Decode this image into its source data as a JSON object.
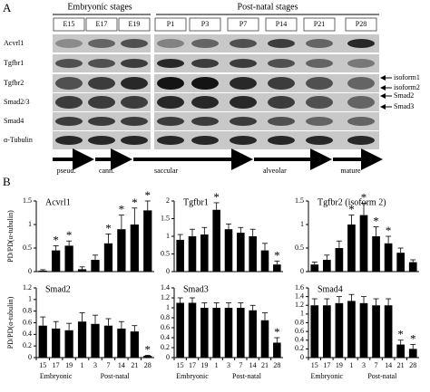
{
  "panel_a": {
    "letter": "A",
    "groups": [
      "Embryonic stages",
      "Post-natal stages"
    ],
    "lanes": [
      "E15",
      "E17",
      "E19",
      "P1",
      "P3",
      "P7",
      "P14",
      "P21",
      "P28"
    ],
    "rows": [
      "Acvrl1",
      "Tgfbr1",
      "Tgfbr2",
      "Smad2/3",
      "Smad4",
      "α-Tubulin"
    ],
    "annotations": [
      "isoform1",
      "isoform2",
      "Smad2",
      "Smad3"
    ],
    "phases": [
      "pseud.",
      "cann.",
      "saccular",
      "alveolar",
      "mature"
    ]
  },
  "panel_b": {
    "letter": "B"
  },
  "chart_data": [
    {
      "type": "bar",
      "title": "Acvrl1",
      "y_label": "PD/PD(α-tubulin)",
      "color": "#000000",
      "values": [
        0.02,
        0.45,
        0.55,
        0.05,
        0.25,
        0.6,
        0.9,
        1.0,
        1.3
      ],
      "errors": [
        0.02,
        0.1,
        0.1,
        0.05,
        0.1,
        0.2,
        0.3,
        0.35,
        0.2
      ],
      "stars": [
        null,
        "*",
        "*",
        null,
        null,
        "*",
        "*",
        "*",
        "*"
      ],
      "ylim": [
        0,
        1.5
      ],
      "yticks": [
        0,
        0.5,
        1,
        1.5
      ]
    },
    {
      "type": "bar",
      "title": "Tgfbr1",
      "color": "#000000",
      "values": [
        0.9,
        1.0,
        1.05,
        1.75,
        1.2,
        1.1,
        1.0,
        0.6,
        0.2
      ],
      "errors": [
        0.15,
        0.2,
        0.2,
        0.2,
        0.15,
        0.15,
        0.2,
        0.2,
        0.1
      ],
      "stars": [
        null,
        null,
        null,
        "*",
        null,
        null,
        null,
        null,
        "*"
      ],
      "ylim": [
        0,
        2
      ],
      "yticks": [
        0,
        0.5,
        1,
        1.5,
        2
      ]
    },
    {
      "type": "bar",
      "title": "Tgfbr2 (isoform 2)",
      "color": "#000000",
      "values": [
        0.15,
        0.25,
        0.5,
        1.0,
        1.2,
        0.75,
        0.6,
        0.4,
        0.2
      ],
      "errors": [
        0.05,
        0.1,
        0.15,
        0.2,
        0.25,
        0.2,
        0.15,
        0.1,
        0.05
      ],
      "stars": [
        null,
        null,
        null,
        "*",
        "*",
        "*",
        "*",
        null,
        null
      ],
      "ylim": [
        0,
        1.5
      ],
      "yticks": [
        0,
        0.5,
        1,
        1.5
      ]
    },
    {
      "type": "bar",
      "title": "Smad2",
      "y_label": "PD/PD(α-tubulin)",
      "color": "#000000",
      "categories": [
        "15",
        "17",
        "19",
        "1",
        "3",
        "7",
        "14",
        "21",
        "28"
      ],
      "groups": [
        "Embryonic",
        "Post-natal"
      ],
      "values": [
        0.55,
        0.5,
        0.47,
        0.62,
        0.58,
        0.55,
        0.5,
        0.45,
        0.03
      ],
      "errors": [
        0.15,
        0.12,
        0.12,
        0.15,
        0.15,
        0.12,
        0.12,
        0.1,
        0.01
      ],
      "stars": [
        null,
        null,
        null,
        null,
        null,
        null,
        null,
        null,
        "*"
      ],
      "ylim": [
        0,
        1.2
      ],
      "yticks": [
        0,
        0.2,
        0.4,
        0.6,
        0.8,
        1,
        1.2
      ]
    },
    {
      "type": "bar",
      "title": "Smad3",
      "color": "#000000",
      "categories": [
        "15",
        "17",
        "19",
        "1",
        "3",
        "7",
        "14",
        "21",
        "28"
      ],
      "groups": [
        "Embryonic",
        "Post-natal"
      ],
      "values": [
        1.1,
        1.1,
        1.0,
        1.0,
        1.0,
        1.0,
        0.95,
        0.75,
        0.3
      ],
      "errors": [
        0.1,
        0.1,
        0.1,
        0.1,
        0.1,
        0.1,
        0.1,
        0.15,
        0.1
      ],
      "stars": [
        null,
        null,
        null,
        null,
        null,
        null,
        null,
        null,
        "*"
      ],
      "ylim": [
        0,
        1.4
      ],
      "yticks": [
        0,
        0.2,
        0.4,
        0.6,
        0.8,
        1,
        1.2,
        1.4
      ]
    },
    {
      "type": "bar",
      "title": "Smad4",
      "color": "#000000",
      "categories": [
        "15",
        "17",
        "19",
        "1",
        "3",
        "7",
        "14",
        "21",
        "28"
      ],
      "groups": [
        "Embryonic",
        "Post-natal"
      ],
      "values": [
        1.2,
        1.2,
        1.25,
        1.3,
        1.25,
        1.2,
        1.2,
        0.3,
        0.2
      ],
      "errors": [
        0.15,
        0.15,
        0.15,
        0.15,
        0.15,
        0.15,
        0.15,
        0.1,
        0.1
      ],
      "stars": [
        null,
        null,
        null,
        null,
        null,
        null,
        null,
        "*",
        "*"
      ],
      "ylim": [
        0,
        1.6
      ],
      "yticks": [
        0,
        0.2,
        0.4,
        0.6,
        0.8,
        1,
        1.2,
        1.4,
        1.6
      ]
    }
  ]
}
